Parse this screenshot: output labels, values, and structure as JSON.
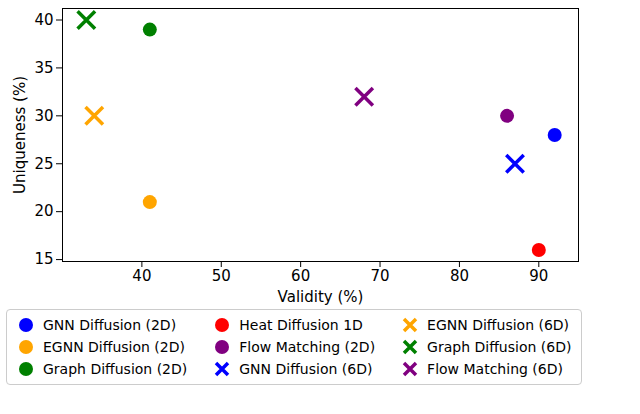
{
  "chart_data": {
    "type": "scatter",
    "x_label": "Validity (%)",
    "y_label": "Uniqueness (%)",
    "xlim": [
      30,
      95
    ],
    "ylim": [
      14.8,
      41.2
    ],
    "xticks": [
      40,
      50,
      60,
      70,
      80,
      90
    ],
    "yticks": [
      15,
      20,
      25,
      30,
      35,
      40
    ],
    "grid": false,
    "legend": "bottom",
    "series": [
      {
        "name": "GNN Diffusion (2D)",
        "color": "#0000ff",
        "marker": "circle",
        "x": [
          92
        ],
        "values": [
          28
        ]
      },
      {
        "name": "EGNN Diffusion (2D)",
        "color": "#ffa500",
        "marker": "circle",
        "x": [
          41
        ],
        "values": [
          21
        ]
      },
      {
        "name": "Graph Diffusion (2D)",
        "color": "#008000",
        "marker": "circle",
        "x": [
          41
        ],
        "values": [
          39
        ]
      },
      {
        "name": "Heat Diffusion 1D",
        "color": "#ff0000",
        "marker": "circle",
        "x": [
          90
        ],
        "values": [
          16
        ]
      },
      {
        "name": "Flow Matching (2D)",
        "color": "#800080",
        "marker": "circle",
        "x": [
          86
        ],
        "values": [
          30
        ]
      },
      {
        "name": "GNN Diffusion (6D)",
        "color": "#0000ff",
        "marker": "x",
        "x": [
          87
        ],
        "values": [
          25
        ]
      },
      {
        "name": "EGNN Diffusion (6D)",
        "color": "#ffa500",
        "marker": "x",
        "x": [
          34
        ],
        "values": [
          30
        ]
      },
      {
        "name": "Graph Diffusion (6D)",
        "color": "#008000",
        "marker": "x",
        "x": [
          33
        ],
        "values": [
          40
        ]
      },
      {
        "name": "Flow Matching (6D)",
        "color": "#800080",
        "marker": "x",
        "x": [
          68
        ],
        "values": [
          32
        ]
      }
    ]
  }
}
